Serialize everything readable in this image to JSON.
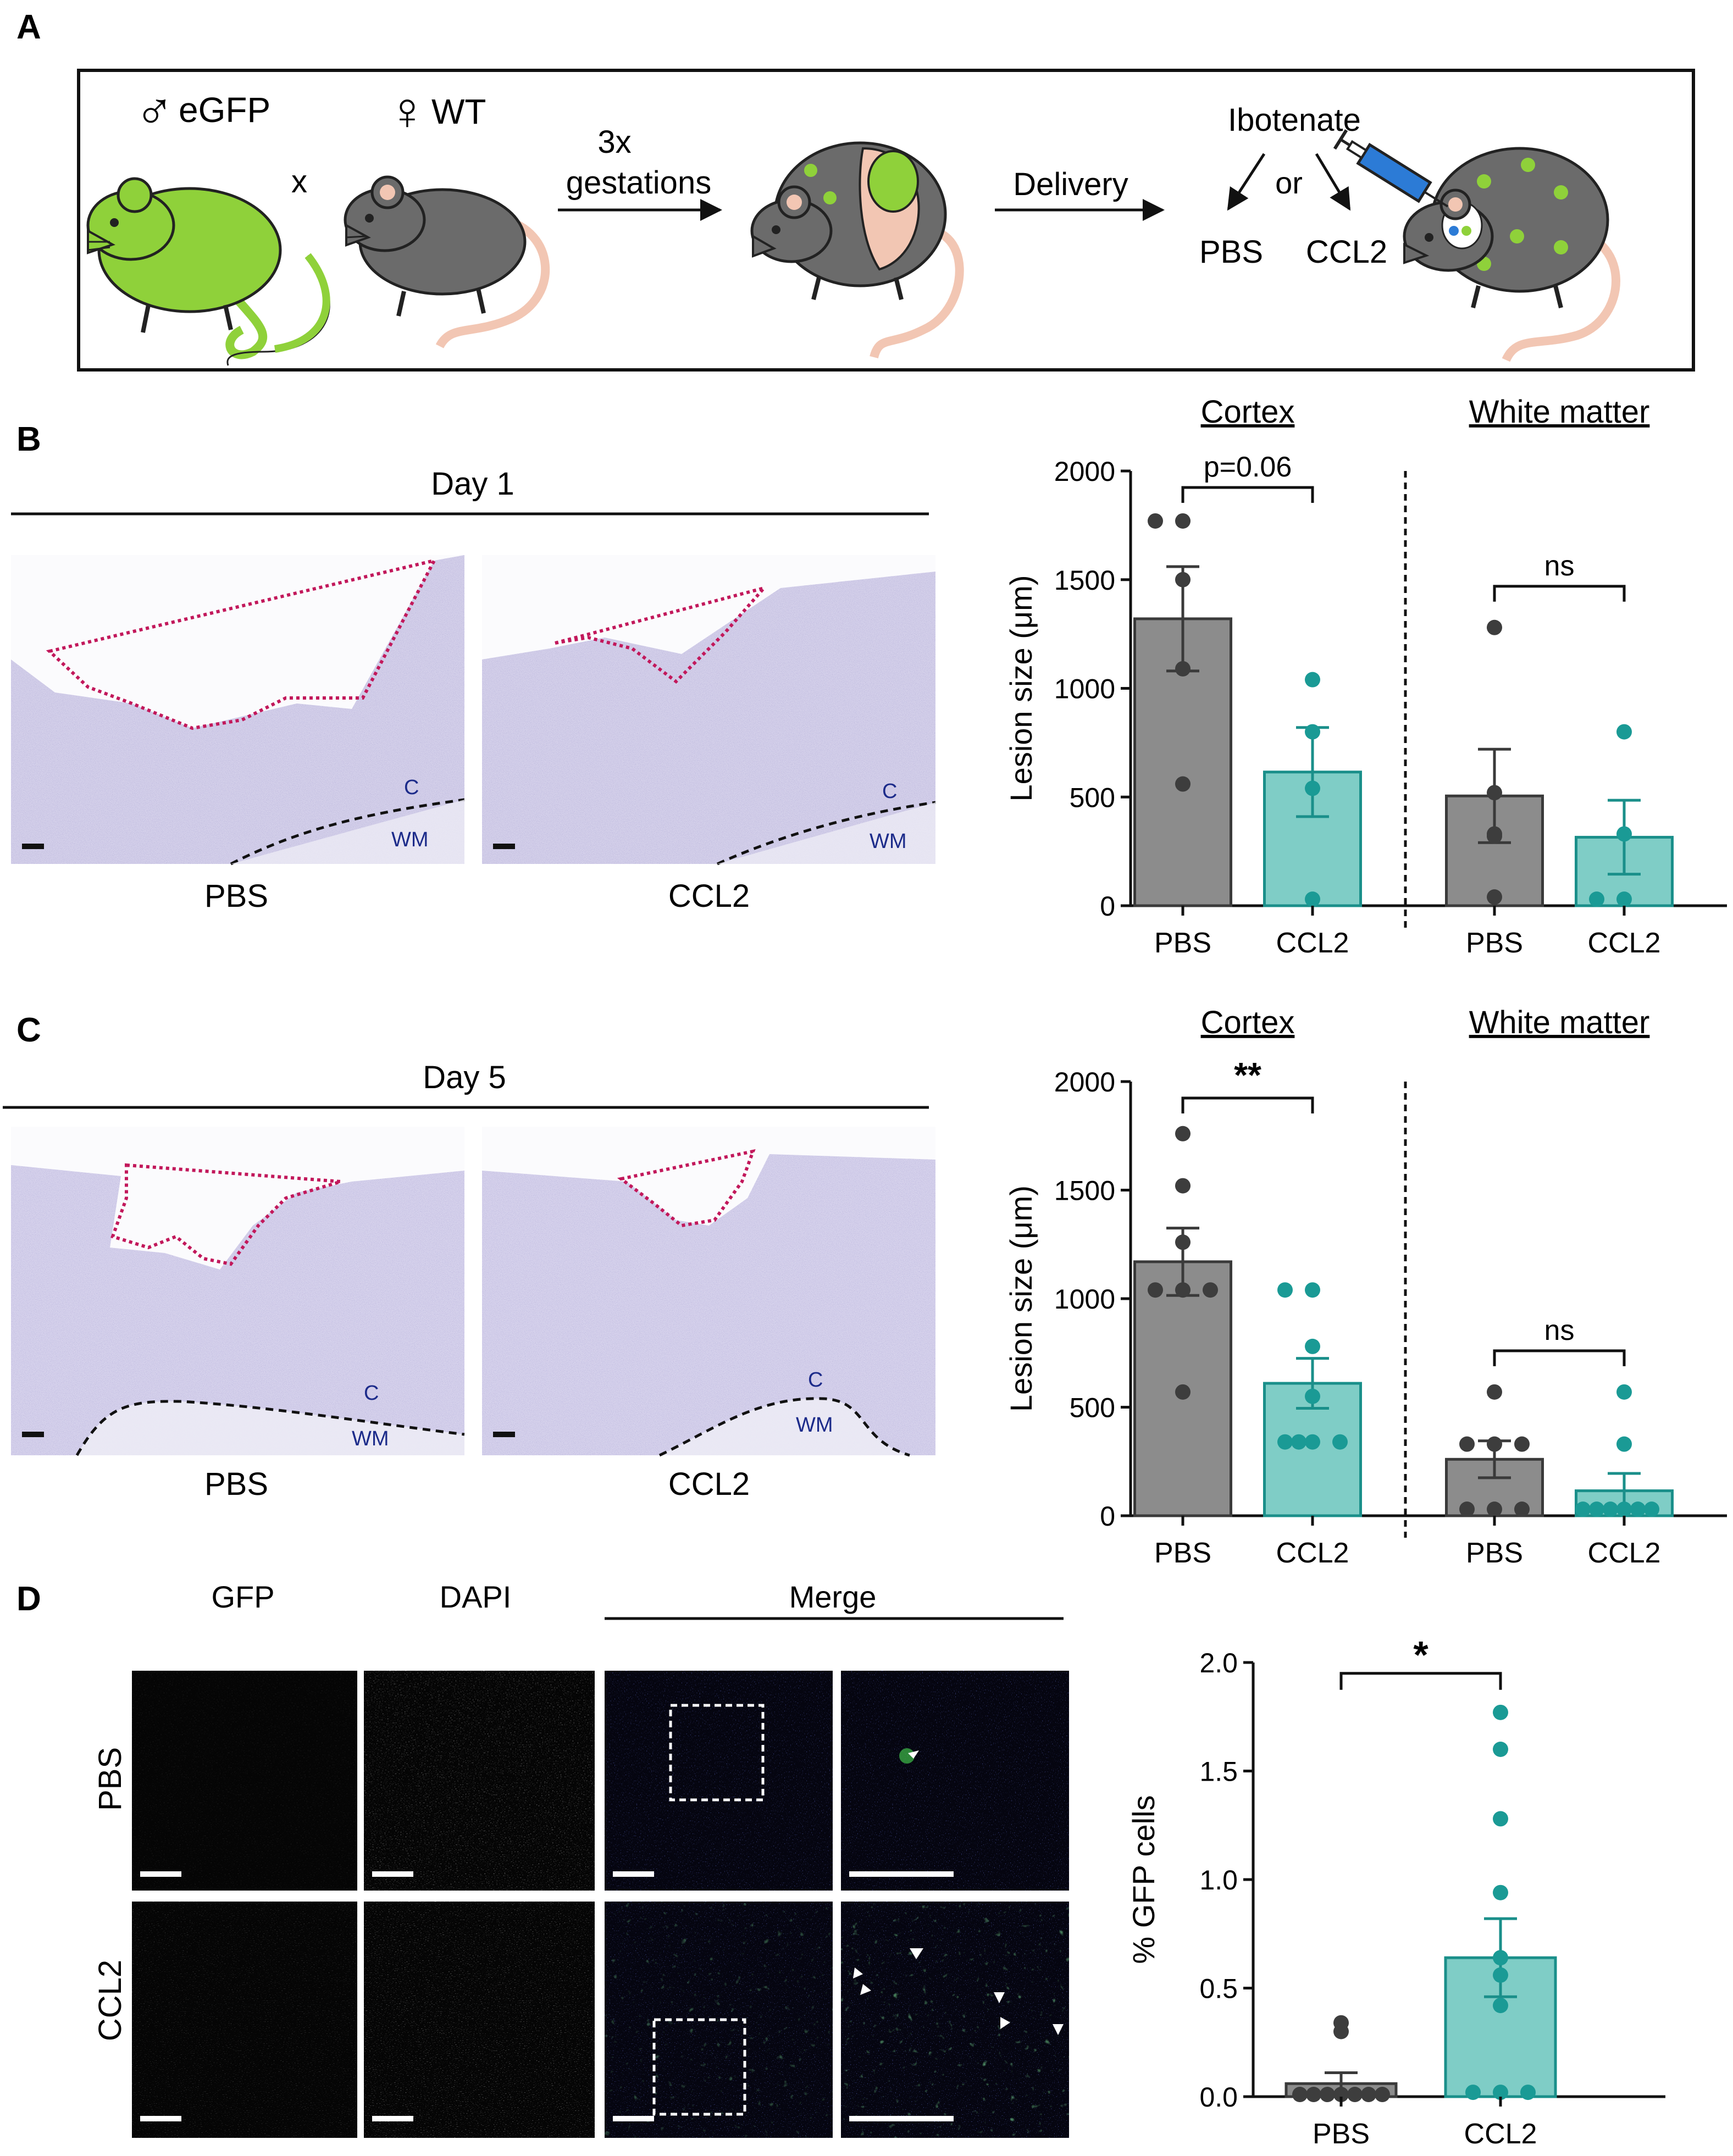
{
  "panels": {
    "A": {
      "letter": "A",
      "male_symbol": "♂",
      "male_label": "eGFP",
      "female_symbol": "♀",
      "female_label": "WT",
      "cross": "x",
      "gestation_line1": "3x",
      "gestation_line2": "gestations",
      "delivery": "Delivery",
      "ibotenate": "Ibotenate",
      "or": "or",
      "pbs": "PBS",
      "ccl2": "CCL2"
    },
    "B": {
      "letter": "B",
      "day": "Day 1",
      "left_label": "PBS",
      "right_label": "CCL2",
      "region_c": "C",
      "region_wm": "WM"
    },
    "C": {
      "letter": "C",
      "day": "Day 5",
      "left_label": "PBS",
      "right_label": "CCL2",
      "region_c": "C",
      "region_wm": "WM"
    },
    "D": {
      "letter": "D",
      "col_gfp": "GFP",
      "col_dapi": "DAPI",
      "col_merge": "Merge",
      "row_pbs": "PBS",
      "row_ccl2": "CCL2"
    }
  },
  "colors": {
    "pbs_bar": "#8c8c8c",
    "ccl2_bar": "#7fcdc6",
    "pbs_dot": "#3d3d3d",
    "ccl2_dot": "#1a9a95",
    "ccl2_edge": "#1a8f8a",
    "lesion_outline": "#c2185b",
    "egfp_green": "#8fd13a"
  },
  "chart_data": [
    {
      "id": "B",
      "type": "bar",
      "ylabel": "Lesion size (μm)",
      "yticks": [
        0,
        500,
        1000,
        1500,
        2000
      ],
      "ylim": [
        0,
        2000
      ],
      "groups": [
        {
          "title": "Cortex",
          "stat": "p=0.06",
          "bars": [
            {
              "label": "PBS",
              "mean": 1320,
              "sem": 240,
              "points": [
                1770,
                1770,
                1500,
                1090,
                560
              ]
            },
            {
              "label": "CCL2",
              "mean": 615,
              "sem": 205,
              "points": [
                1040,
                800,
                540,
                30
              ]
            }
          ]
        },
        {
          "title": "White matter",
          "stat": "ns",
          "bars": [
            {
              "label": "PBS",
              "mean": 505,
              "sem": 215,
              "points": [
                1280,
                520,
                330,
                320,
                40
              ]
            },
            {
              "label": "CCL2",
              "mean": 315,
              "sem": 170,
              "points": [
                800,
                330,
                30,
                30
              ]
            }
          ]
        }
      ]
    },
    {
      "id": "C",
      "type": "bar",
      "ylabel": "Lesion size (μm)",
      "yticks": [
        0,
        500,
        1000,
        1500,
        2000
      ],
      "ylim": [
        0,
        2000
      ],
      "groups": [
        {
          "title": "Cortex",
          "stat": "**",
          "bars": [
            {
              "label": "PBS",
              "mean": 1170,
              "sem": 155,
              "points": [
                1760,
                1520,
                1260,
                1040,
                1040,
                1040,
                570
              ]
            },
            {
              "label": "CCL2",
              "mean": 610,
              "sem": 115,
              "points": [
                1040,
                1040,
                780,
                550,
                340,
                340,
                340,
                340
              ]
            }
          ]
        },
        {
          "title": "White matter",
          "stat": "ns",
          "bars": [
            {
              "label": "PBS",
              "mean": 260,
              "sem": 85,
              "points": [
                570,
                330,
                330,
                330,
                30,
                30,
                30
              ]
            },
            {
              "label": "CCL2",
              "mean": 115,
              "sem": 80,
              "points": [
                570,
                330,
                30,
                30,
                30,
                30,
                30,
                30
              ]
            }
          ]
        }
      ]
    },
    {
      "id": "D",
      "type": "bar",
      "ylabel": "% GFP cells",
      "yticks": [
        "0.0",
        "0.5",
        "1.0",
        "1.5",
        "2.0"
      ],
      "ylim": [
        0,
        2
      ],
      "stat": "*",
      "bars": [
        {
          "label": "PBS",
          "mean": 0.06,
          "sem": 0.05,
          "points": [
            0.34,
            0.3,
            0.01,
            0.01,
            0.01,
            0.01,
            0.01,
            0.01,
            0.01
          ]
        },
        {
          "label": "CCL2",
          "mean": 0.64,
          "sem": 0.18,
          "points": [
            1.77,
            1.6,
            1.28,
            0.94,
            0.64,
            0.56,
            0.42,
            0.02,
            0.02,
            0.02
          ]
        }
      ]
    }
  ]
}
